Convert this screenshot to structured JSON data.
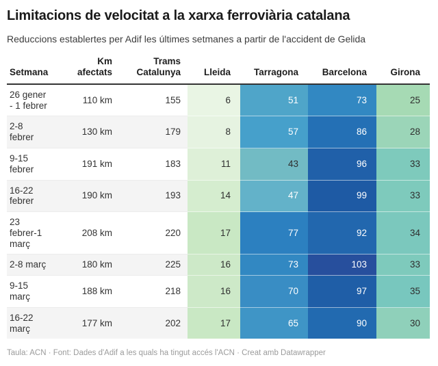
{
  "header": {
    "title": "Limitacions de velocitat a la xarxa ferroviària catalana",
    "subtitle": "Reduccions establertes per Adif les últimes setmanes a partir de l'accident de Gelida"
  },
  "footer": {
    "text": "Taula: ACN · Font: Dades d'Adif a les quals ha tingut accés l'ACN · Creat amb Datawrapper"
  },
  "palette": {
    "heat_text_dark": "#2e2e2e",
    "heat_text_light": "#ffffff",
    "zebra_row": "#f4f4f4",
    "header_rule": "#333333",
    "heat_scale_low": "#e9f5e4",
    "heat_scale_high": "#274f9d"
  },
  "chart_data": {
    "type": "table",
    "title": "Limitacions de velocitat a la xarxa ferroviària catalana",
    "subtitle": "Reduccions establertes per Adif les últimes setmanes a partir de l'accident de Gelida",
    "columns": [
      {
        "key": "setmana",
        "label": "Setmana",
        "align": "left",
        "heatmap": false
      },
      {
        "key": "km",
        "label": "Km\nafectats",
        "align": "right",
        "heatmap": false
      },
      {
        "key": "trams",
        "label": "Trams\nCatalunya",
        "align": "right",
        "heatmap": false
      },
      {
        "key": "lleida",
        "label": "Lleida",
        "align": "right",
        "heatmap": true
      },
      {
        "key": "tarragona",
        "label": "Tarragona",
        "align": "right",
        "heatmap": true
      },
      {
        "key": "barcelona",
        "label": "Barcelona",
        "align": "right",
        "heatmap": true
      },
      {
        "key": "girona",
        "label": "Girona",
        "align": "right",
        "heatmap": true
      }
    ],
    "rows": [
      {
        "setmana": "26 gener\n- 1 febrer",
        "km": "110 km",
        "trams": 155,
        "heat": [
          {
            "value": 6,
            "bg": "#e9f5e4",
            "text": "dark"
          },
          {
            "value": 51,
            "bg": "#4fa5c9",
            "text": "light"
          },
          {
            "value": 73,
            "bg": "#3288c2",
            "text": "light"
          },
          {
            "value": 25,
            "bg": "#a6dab4",
            "text": "dark"
          }
        ]
      },
      {
        "setmana": "2-8\nfebrer",
        "km": "130 km",
        "trams": 179,
        "heat": [
          {
            "value": 8,
            "bg": "#e6f3e1",
            "text": "dark"
          },
          {
            "value": 57,
            "bg": "#46a0cb",
            "text": "light"
          },
          {
            "value": 86,
            "bg": "#2470b5",
            "text": "light"
          },
          {
            "value": 28,
            "bg": "#9bd5b8",
            "text": "dark"
          }
        ]
      },
      {
        "setmana": "9-15\nfebrer",
        "km": "191 km",
        "trams": 183,
        "heat": [
          {
            "value": 11,
            "bg": "#def0d8",
            "text": "dark"
          },
          {
            "value": 43,
            "bg": "#72bbc4",
            "text": "dark"
          },
          {
            "value": 96,
            "bg": "#2060a9",
            "text": "light"
          },
          {
            "value": 33,
            "bg": "#7ecabc",
            "text": "dark"
          }
        ]
      },
      {
        "setmana": "16-22\nfebrer",
        "km": "190 km",
        "trams": 193,
        "heat": [
          {
            "value": 14,
            "bg": "#d5edcf",
            "text": "dark"
          },
          {
            "value": 47,
            "bg": "#63b2c9",
            "text": "light"
          },
          {
            "value": 99,
            "bg": "#1e5aa4",
            "text": "light"
          },
          {
            "value": 33,
            "bg": "#7ecabc",
            "text": "dark"
          }
        ]
      },
      {
        "setmana": "23\nfebrer-1\nmarç",
        "km": "208 km",
        "trams": 220,
        "heat": [
          {
            "value": 17,
            "bg": "#c9e8c4",
            "text": "dark"
          },
          {
            "value": 77,
            "bg": "#2c80c0",
            "text": "light"
          },
          {
            "value": 92,
            "bg": "#2267ae",
            "text": "light"
          },
          {
            "value": 34,
            "bg": "#7bc8bd",
            "text": "dark"
          }
        ]
      },
      {
        "setmana": "2-8 març",
        "km": "180 km",
        "trams": 225,
        "heat": [
          {
            "value": 16,
            "bg": "#cde9c8",
            "text": "dark"
          },
          {
            "value": 73,
            "bg": "#3288c2",
            "text": "light"
          },
          {
            "value": 103,
            "bg": "#274f9d",
            "text": "light"
          },
          {
            "value": 33,
            "bg": "#7ecabc",
            "text": "dark"
          }
        ]
      },
      {
        "setmana": "9-15\nmarç",
        "km": "188 km",
        "trams": 218,
        "heat": [
          {
            "value": 16,
            "bg": "#cde9c8",
            "text": "dark"
          },
          {
            "value": 70,
            "bg": "#398dc4",
            "text": "light"
          },
          {
            "value": 97,
            "bg": "#1f5ea7",
            "text": "light"
          },
          {
            "value": 35,
            "bg": "#78c7be",
            "text": "dark"
          }
        ]
      },
      {
        "setmana": "16-22\nmarç",
        "km": "177 km",
        "trams": 202,
        "heat": [
          {
            "value": 17,
            "bg": "#c9e8c4",
            "text": "dark"
          },
          {
            "value": 65,
            "bg": "#3f95c6",
            "text": "light"
          },
          {
            "value": 90,
            "bg": "#226ab0",
            "text": "light"
          },
          {
            "value": 30,
            "bg": "#8fd0ba",
            "text": "dark"
          }
        ]
      }
    ]
  }
}
